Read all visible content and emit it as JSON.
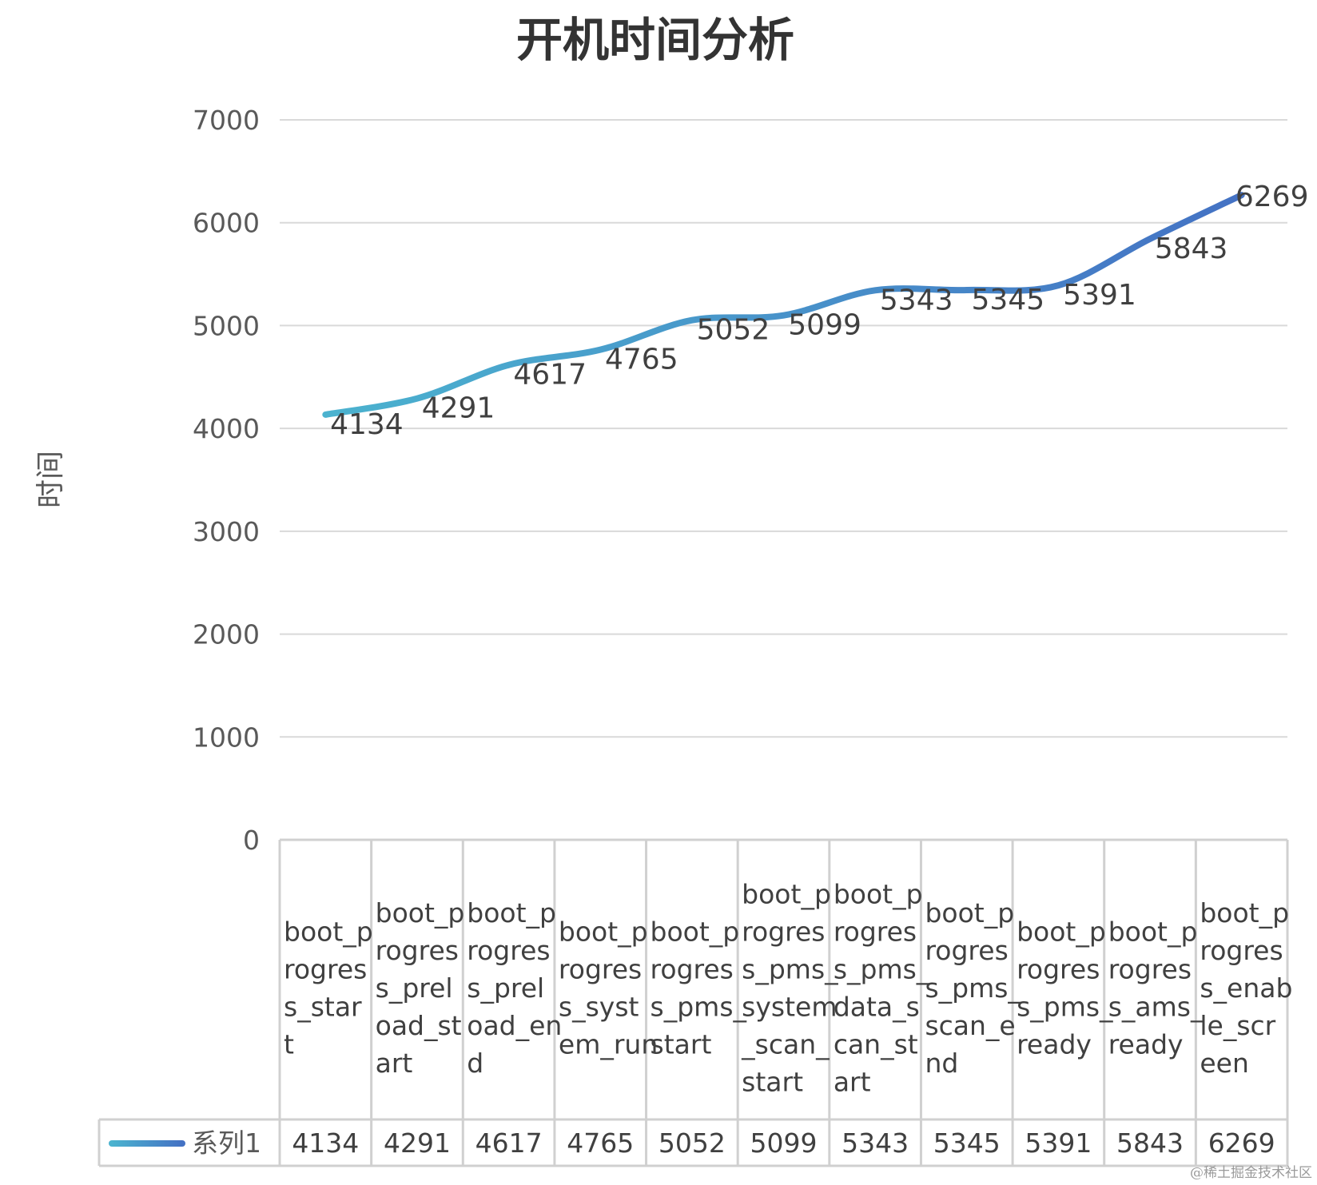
{
  "chart_data": {
    "type": "line",
    "title": "开机时间分析",
    "ylabel": "时间",
    "xlabel": "",
    "ylim": [
      0,
      7000
    ],
    "yticks": [
      0,
      1000,
      2000,
      3000,
      4000,
      5000,
      6000,
      7000
    ],
    "grid": true,
    "smooth": true,
    "data_labels": true,
    "data_table": true,
    "categories": [
      "boot_progress_start",
      "boot_progress_preload_start",
      "boot_progress_preload_end",
      "boot_progress_system_run",
      "boot_progress_pms_start",
      "boot_progress_pms_system_scan_start",
      "boot_progress_pms_data_scan_start",
      "boot_progress_pms_scan_end",
      "boot_progress_pms_ready",
      "boot_progress_ams_ready",
      "boot_progress_enable_screen"
    ],
    "series": [
      {
        "name": "系列1",
        "values": [
          4134,
          4291,
          4617,
          4765,
          5052,
          5099,
          5343,
          5345,
          5391,
          5843,
          6269
        ]
      }
    ],
    "colors": {
      "line_start": "#4bb3cf",
      "line_end": "#4472c4",
      "grid": "#d9d9d9",
      "table_border": "#d0d0d0"
    }
  },
  "watermark": "@稀土掘金技术社区"
}
